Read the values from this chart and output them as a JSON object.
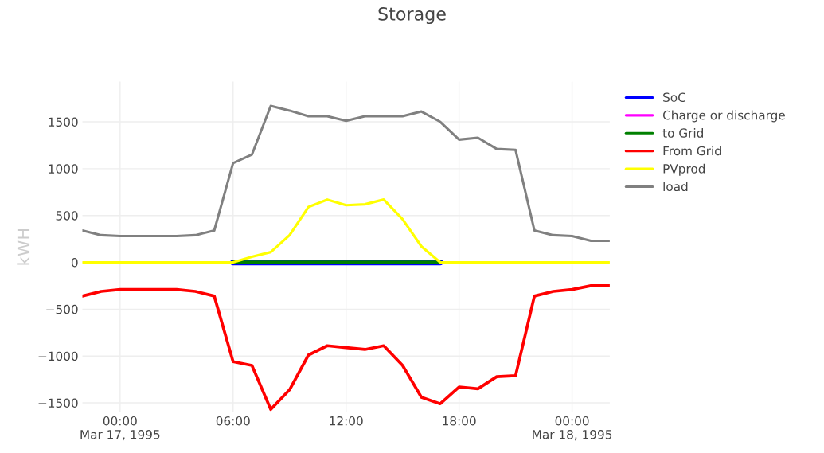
{
  "chart_data": {
    "type": "line",
    "title": "Storage",
    "ylabel": "kWH",
    "x": [
      "1995-03-16T22:00",
      "1995-03-16T23:00",
      "1995-03-17T00:00",
      "1995-03-17T01:00",
      "1995-03-17T02:00",
      "1995-03-17T03:00",
      "1995-03-17T04:00",
      "1995-03-17T05:00",
      "1995-03-17T06:00",
      "1995-03-17T07:00",
      "1995-03-17T08:00",
      "1995-03-17T09:00",
      "1995-03-17T10:00",
      "1995-03-17T11:00",
      "1995-03-17T12:00",
      "1995-03-17T13:00",
      "1995-03-17T14:00",
      "1995-03-17T15:00",
      "1995-03-17T16:00",
      "1995-03-17T17:00",
      "1995-03-17T18:00",
      "1995-03-17T19:00",
      "1995-03-17T20:00",
      "1995-03-17T21:00",
      "1995-03-17T22:00",
      "1995-03-17T23:00",
      "1995-03-18T00:00",
      "1995-03-18T01:00",
      "1995-03-18T02:00"
    ],
    "series": [
      {
        "name": "SoC",
        "color": "#0000ff",
        "values": [
          null,
          null,
          null,
          null,
          null,
          null,
          null,
          null,
          0,
          0,
          0,
          0,
          0,
          0,
          0,
          0,
          0,
          0,
          0,
          0,
          null,
          null,
          null,
          null,
          null,
          null,
          null,
          null,
          null
        ]
      },
      {
        "name": "Charge or discharge",
        "color": "#ff00ff",
        "values": [
          null,
          null,
          null,
          null,
          null,
          null,
          null,
          null,
          null,
          null,
          null,
          null,
          null,
          null,
          null,
          null,
          null,
          null,
          null,
          null,
          null,
          null,
          null,
          null,
          null,
          null,
          null,
          null,
          null
        ]
      },
      {
        "name": "to Grid",
        "color": "#008000",
        "values": [
          null,
          null,
          null,
          null,
          null,
          null,
          null,
          null,
          0,
          0,
          0,
          0,
          0,
          0,
          0,
          0,
          0,
          0,
          0,
          0,
          null,
          null,
          null,
          null,
          null,
          null,
          null,
          null,
          null
        ]
      },
      {
        "name": "From Grid",
        "color": "#ff0000",
        "values": [
          -360,
          -310,
          -290,
          -290,
          -290,
          -290,
          -310,
          -360,
          -1060,
          -1100,
          -1570,
          -1360,
          -990,
          -890,
          -910,
          -930,
          -890,
          -1100,
          -1440,
          -1510,
          -1330,
          -1350,
          -1220,
          -1210,
          -360,
          -310,
          -290,
          -250,
          -250
        ]
      },
      {
        "name": "PVprod",
        "color": "#ffff00",
        "values": [
          0,
          0,
          0,
          0,
          0,
          0,
          0,
          0,
          0,
          60,
          110,
          290,
          590,
          670,
          610,
          620,
          670,
          460,
          170,
          0,
          0,
          0,
          0,
          0,
          0,
          0,
          0,
          0,
          0
        ]
      },
      {
        "name": "load",
        "color": "#808080",
        "values": [
          340,
          290,
          280,
          280,
          280,
          280,
          290,
          340,
          1060,
          1150,
          1670,
          1620,
          1560,
          1560,
          1510,
          1560,
          1560,
          1560,
          1610,
          1500,
          1310,
          1330,
          1210,
          1200,
          340,
          290,
          280,
          230,
          230
        ]
      }
    ],
    "xlim": [
      "1995-03-16T22:00",
      "1995-03-18T02:00"
    ],
    "xticks": [
      {
        "value": "1995-03-17T00:00",
        "label": "00:00\nMar 17, 1995"
      },
      {
        "value": "1995-03-17T06:00",
        "label": "06:00"
      },
      {
        "value": "1995-03-17T12:00",
        "label": "12:00"
      },
      {
        "value": "1995-03-17T18:00",
        "label": "18:00"
      },
      {
        "value": "1995-03-18T00:00",
        "label": "00:00\nMar 18, 1995"
      }
    ],
    "ylim": [
      -1600,
      1930
    ],
    "yticks": [
      {
        "value": -1500,
        "label": "−1500"
      },
      {
        "value": -1000,
        "label": "−1000"
      },
      {
        "value": -500,
        "label": "−500"
      },
      0,
      500,
      1000,
      1500
    ],
    "grid": true,
    "legend": "top right",
    "marker": "none",
    "line_style": "solid"
  }
}
